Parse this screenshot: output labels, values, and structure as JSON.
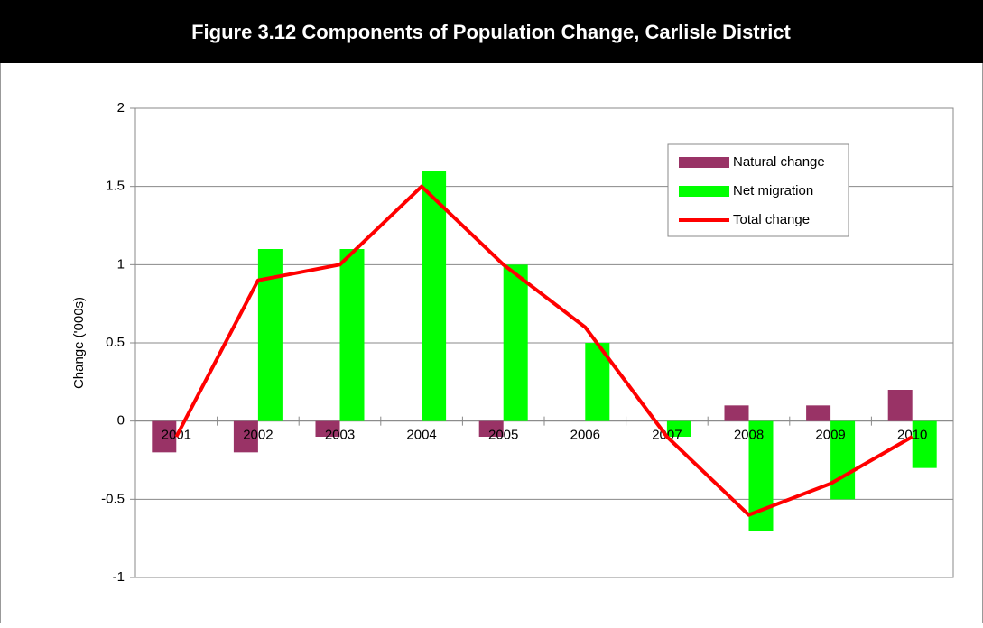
{
  "chart_data": {
    "type": "bar-line",
    "title": "Figure 3.12 Components of Population Change, Carlisle District",
    "y_label": "Change ('000s)",
    "categories": [
      "2001",
      "2002",
      "2003",
      "2004",
      "2005",
      "2006",
      "2007",
      "2008",
      "2009",
      "2010"
    ],
    "series": [
      {
        "name": "Natural change",
        "type": "bar",
        "color": "#993366",
        "values": [
          -0.2,
          -0.2,
          -0.1,
          0,
          -0.1,
          0,
          0,
          0.1,
          0.1,
          0.2
        ]
      },
      {
        "name": "Net migration",
        "type": "bar",
        "color": "#00ff00",
        "values": [
          0,
          1.1,
          1.1,
          1.6,
          1.0,
          0.5,
          -0.1,
          -0.7,
          -0.5,
          -0.3
        ]
      },
      {
        "name": "Total change",
        "type": "line",
        "color": "#ff0000",
        "values": [
          -0.1,
          0.9,
          1.0,
          1.5,
          1.0,
          0.6,
          -0.1,
          -0.6,
          -0.4,
          -0.1
        ]
      }
    ],
    "ylim": [
      -1,
      2
    ],
    "yticks": [
      -1,
      -0.5,
      0,
      0.5,
      1,
      1.5,
      2
    ],
    "grid": true,
    "legend": "top-right"
  }
}
